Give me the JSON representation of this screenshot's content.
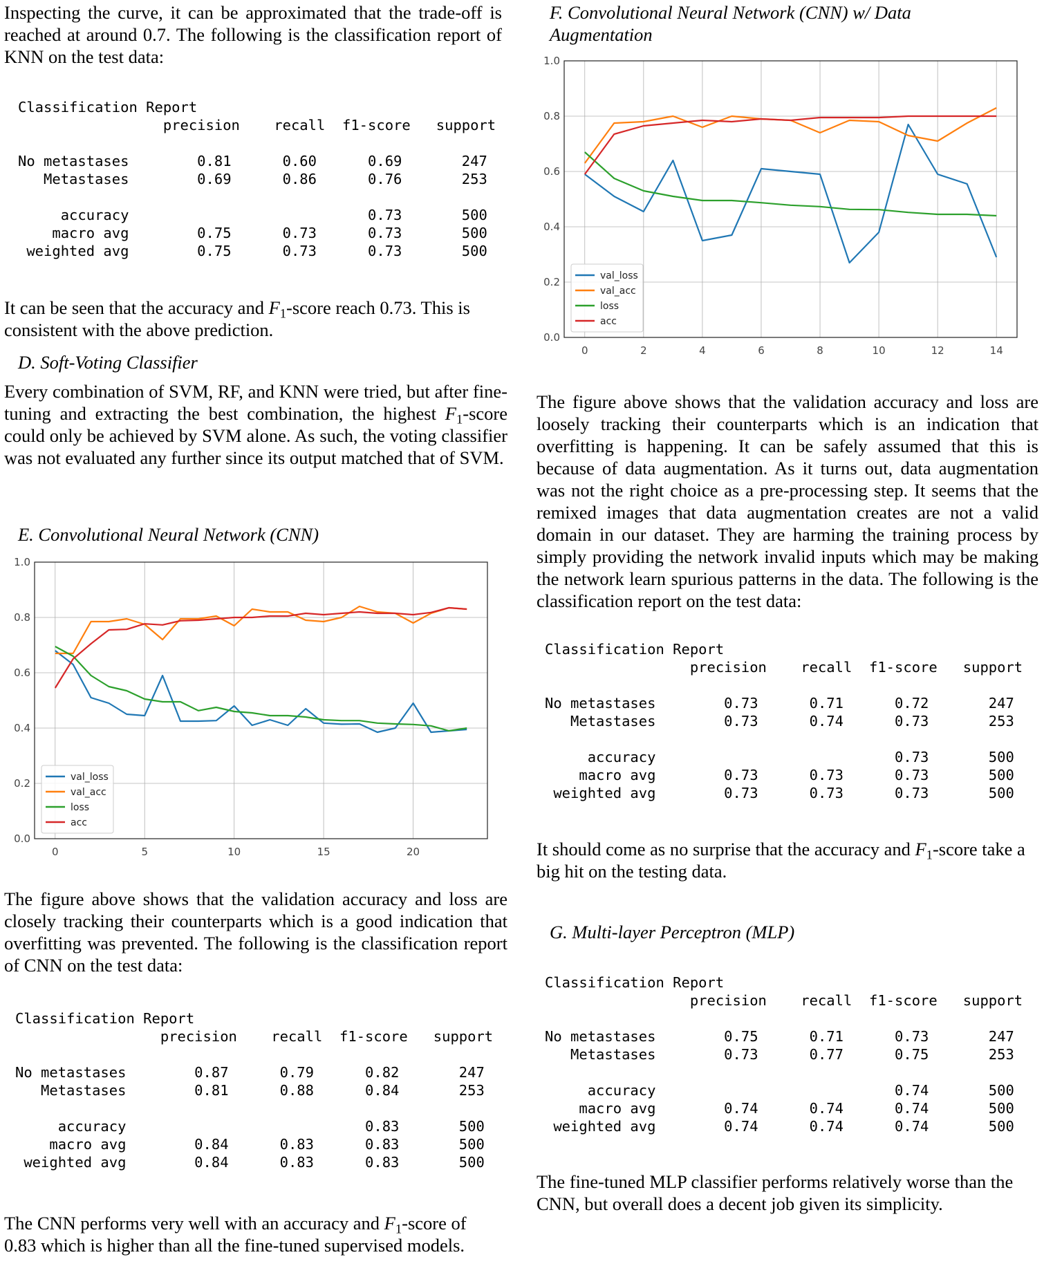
{
  "left": {
    "para1": "Inspecting the curve, it can be approximated that the trade-off is reached at around 0.7. The following is the classification report of KNN on the test data:",
    "knn_report": "Classification Report\n                 precision    recall  f1-score   support\n\nNo metastases        0.81      0.60      0.69       247\n   Metastases        0.69      0.86      0.76       253\n\n     accuracy                            0.73       500\n    macro avg        0.75      0.73      0.73       500\n weighted avg        0.75      0.73      0.73       500",
    "para2_a": "It can be seen that the accuracy and ",
    "para2_f": "F",
    "para2_sub": "1",
    "para2_b": "-score reach 0.73. This is consistent with the above prediction.",
    "heading_d": "D. Soft-Voting Classifier",
    "para3_a": "Every combination of SVM, RF, and KNN were tried, but after fine-tuning and extracting the best combination, the highest ",
    "para3_f": "F",
    "para3_sub": "1",
    "para3_b": "-score could only be achieved by SVM alone. As such, the voting classifier was not evaluated any further since its output matched that of SVM.",
    "heading_e": "E. Convolutional Neural Network (CNN)",
    "para4": "The figure above shows that the validation accuracy and loss are closely tracking their counterparts which is a good indication that overfitting was prevented. The following is the classification report of CNN on the test data:",
    "cnn_report": "Classification Report\n                 precision    recall  f1-score   support\n\nNo metastases        0.87      0.79      0.82       247\n   Metastases        0.81      0.88      0.84       253\n\n     accuracy                            0.83       500\n    macro avg        0.84      0.83      0.83       500\n weighted avg        0.84      0.83      0.83       500",
    "para5_a": "The CNN performs very well with an accuracy and ",
    "para5_f": "F",
    "para5_sub": "1",
    "para5_b": "-score of 0.83 which is higher than all the fine-tuned supervised models."
  },
  "right": {
    "heading_f": "F. Convolutional Neural Network (CNN) w/ Data Augmentation",
    "para6": "The figure above shows that the validation accuracy and loss are loosely tracking their counterparts which is an indication that overfitting is happening. It can be safely assumed that this is because of data augmentation. As it turns out, data augmentation was not the right choice as a pre-processing step. It seems that the remixed images that data augmentation creates are not a valid domain in our dataset. They are harming the training process by simply providing the network invalid inputs which may be making the network learn spurious patterns in the data. The following is the classification report on the test data:",
    "aug_report": "Classification Report\n                 precision    recall  f1-score   support\n\nNo metastases        0.73      0.71      0.72       247\n   Metastases        0.73      0.74      0.73       253\n\n     accuracy                            0.73       500\n    macro avg        0.73      0.73      0.73       500\n weighted avg        0.73      0.73      0.73       500",
    "para7_a": "It should come as no surprise that the accuracy and ",
    "para7_f": "F",
    "para7_sub": "1",
    "para7_b": "-score take a big hit on the testing data.",
    "heading_g": "G. Multi-layer Perceptron (MLP)",
    "mlp_report": "Classification Report\n                 precision    recall  f1-score   support\n\nNo metastases        0.75      0.71      0.73       247\n   Metastases        0.73      0.77      0.75       253\n\n     accuracy                            0.74       500\n    macro avg        0.74      0.74      0.74       500\n weighted avg        0.74      0.74      0.74       500",
    "para8": "The fine-tuned MLP classifier performs relatively worse than the CNN, but overall does a decent job given its simplicity."
  },
  "chart_data": [
    {
      "type": "line",
      "title": "",
      "xlabel": "",
      "ylabel": "",
      "xlim": [
        -1.15,
        24.15
      ],
      "ylim": [
        0.0,
        1.0
      ],
      "xticks": [
        0,
        5,
        10,
        15,
        20
      ],
      "yticks": [
        0.0,
        0.2,
        0.4,
        0.6,
        0.8,
        1.0
      ],
      "grid": true,
      "legend": "lower-left",
      "x": [
        0,
        1,
        2,
        3,
        4,
        5,
        6,
        7,
        8,
        9,
        10,
        11,
        12,
        13,
        14,
        15,
        16,
        17,
        18,
        19,
        20,
        21,
        22,
        23
      ],
      "series": [
        {
          "name": "val_loss",
          "color": "#1f77b4",
          "values": [
            0.68,
            0.63,
            0.51,
            0.49,
            0.45,
            0.445,
            0.59,
            0.425,
            0.425,
            0.427,
            0.48,
            0.41,
            0.43,
            0.41,
            0.47,
            0.418,
            0.414,
            0.415,
            0.385,
            0.4,
            0.49,
            0.385,
            0.39,
            0.395
          ]
        },
        {
          "name": "val_acc",
          "color": "#ff7f0e",
          "values": [
            0.67,
            0.67,
            0.785,
            0.785,
            0.795,
            0.775,
            0.72,
            0.795,
            0.795,
            0.805,
            0.77,
            0.83,
            0.82,
            0.82,
            0.79,
            0.785,
            0.8,
            0.84,
            0.82,
            0.815,
            0.78,
            0.815,
            0.835,
            0.83
          ]
        },
        {
          "name": "loss",
          "color": "#2ca02c",
          "values": [
            0.695,
            0.66,
            0.59,
            0.55,
            0.535,
            0.505,
            0.495,
            0.495,
            0.463,
            0.475,
            0.46,
            0.455,
            0.445,
            0.445,
            0.44,
            0.43,
            0.427,
            0.427,
            0.418,
            0.415,
            0.413,
            0.408,
            0.39,
            0.4
          ]
        },
        {
          "name": "acc",
          "color": "#d62728",
          "values": [
            0.545,
            0.65,
            0.705,
            0.755,
            0.757,
            0.777,
            0.773,
            0.788,
            0.79,
            0.795,
            0.8,
            0.8,
            0.805,
            0.805,
            0.815,
            0.81,
            0.815,
            0.82,
            0.815,
            0.815,
            0.81,
            0.818,
            0.835,
            0.83
          ]
        }
      ]
    },
    {
      "type": "line",
      "title": "",
      "xlabel": "",
      "ylabel": "",
      "xlim": [
        -0.7,
        14.7
      ],
      "ylim": [
        0.0,
        1.0
      ],
      "xticks": [
        0,
        2,
        4,
        6,
        8,
        10,
        12,
        14
      ],
      "yticks": [
        0.0,
        0.2,
        0.4,
        0.6,
        0.8,
        1.0
      ],
      "grid": true,
      "legend": "lower-left",
      "x": [
        0,
        1,
        2,
        3,
        4,
        5,
        6,
        7,
        8,
        9,
        10,
        11,
        12,
        13,
        14
      ],
      "series": [
        {
          "name": "val_loss",
          "color": "#1f77b4",
          "values": [
            0.59,
            0.51,
            0.455,
            0.64,
            0.35,
            0.37,
            0.61,
            0.6,
            0.59,
            0.27,
            0.38,
            0.77,
            0.59,
            0.555,
            0.29
          ]
        },
        {
          "name": "val_acc",
          "color": "#ff7f0e",
          "values": [
            0.63,
            0.775,
            0.78,
            0.8,
            0.76,
            0.8,
            0.79,
            0.785,
            0.74,
            0.785,
            0.78,
            0.73,
            0.71,
            0.775,
            0.83
          ]
        },
        {
          "name": "loss",
          "color": "#2ca02c",
          "values": [
            0.67,
            0.575,
            0.53,
            0.51,
            0.495,
            0.495,
            0.487,
            0.478,
            0.473,
            0.463,
            0.462,
            0.452,
            0.445,
            0.445,
            0.44
          ]
        },
        {
          "name": "acc",
          "color": "#d62728",
          "values": [
            0.59,
            0.735,
            0.765,
            0.775,
            0.785,
            0.78,
            0.79,
            0.785,
            0.795,
            0.795,
            0.795,
            0.8,
            0.8,
            0.8,
            0.8
          ]
        }
      ]
    }
  ]
}
